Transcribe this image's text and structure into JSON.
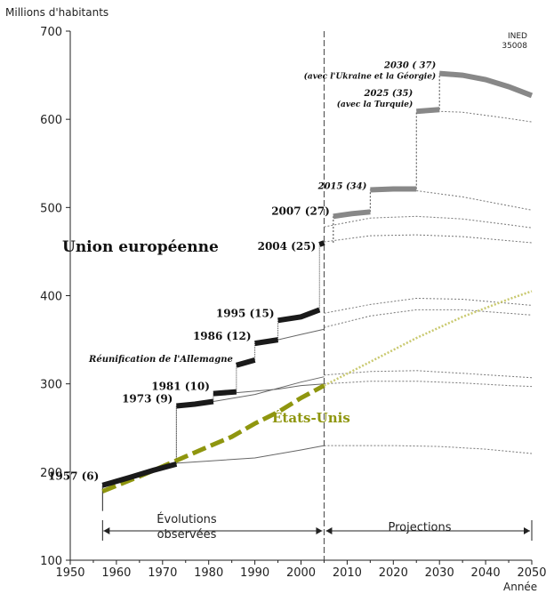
{
  "chart_data": {
    "type": "line",
    "ylabel": "Millions d'habitants",
    "xlabel": "Année",
    "xlim": [
      1950,
      2050
    ],
    "ylim": [
      100,
      700
    ],
    "x_ticks": [
      "1950",
      "1960",
      "1970",
      "1980",
      "1990",
      "2000",
      "2010",
      "2020",
      "2030",
      "2040",
      "2050"
    ],
    "y_ticks": [
      "100",
      "200",
      "300",
      "400",
      "500",
      "600",
      "700"
    ],
    "source_tag": [
      "INED",
      "35008"
    ],
    "region_labels": {
      "observed": [
        "Évolutions",
        "observées"
      ],
      "projected": "Projections"
    },
    "split_year": 2005,
    "eu_label": "Union européenne",
    "us_label": "États-Unis",
    "colors": {
      "eu_observed": "#1a1a1a",
      "eu_projected": "#888888",
      "us": "#8f960f",
      "thin": "#555555"
    },
    "eu_steps": [
      {
        "label": "1957 (6)",
        "start": 1957,
        "end": 1973,
        "values": [
          [
            1957,
            185
          ],
          [
            1963,
            194
          ],
          [
            1968,
            202
          ],
          [
            1973,
            209
          ]
        ]
      },
      {
        "label": "1973 (9)",
        "start": 1973,
        "end": 1981,
        "values": [
          [
            1973,
            275
          ],
          [
            1977,
            277
          ],
          [
            1981,
            280
          ]
        ]
      },
      {
        "label": "1981 (10)",
        "start": 1981,
        "end": 1986,
        "values": [
          [
            1981,
            289
          ],
          [
            1986,
            291
          ]
        ]
      },
      {
        "label": "Réunification de l'Allemagne",
        "start": 1986,
        "end": 1990,
        "values": [
          [
            1986,
            321
          ],
          [
            1990,
            327
          ]
        ]
      },
      {
        "label": "1986 (12)",
        "start": 1990,
        "end": 1995,
        "values": [
          [
            1990,
            346
          ],
          [
            1995,
            350
          ]
        ]
      },
      {
        "label": "1995 (15)",
        "start": 1995,
        "end": 2004,
        "values": [
          [
            1995,
            372
          ],
          [
            2000,
            376
          ],
          [
            2004,
            384
          ]
        ]
      },
      {
        "label": "2004 (25)",
        "start": 2004,
        "end": 2005,
        "values": [
          [
            2004,
            458
          ],
          [
            2005,
            460
          ]
        ]
      }
    ],
    "eu_projected_steps": [
      {
        "label": "2007 (27)",
        "start": 2007,
        "end": 2015,
        "values": [
          [
            2007,
            490
          ],
          [
            2011,
            493
          ],
          [
            2015,
            495
          ]
        ]
      },
      {
        "label": "2015 (34)",
        "start": 2015,
        "end": 2025,
        "values": [
          [
            2015,
            520
          ],
          [
            2020,
            521
          ],
          [
            2025,
            521
          ]
        ]
      },
      {
        "label": "2025 (35)",
        "annotation": "(avec la Turquie)",
        "start": 2025,
        "end": 2030,
        "values": [
          [
            2025,
            609
          ],
          [
            2030,
            611
          ]
        ]
      },
      {
        "label": "2030 ( 37)",
        "annotation": "(avec l'Ukraine et la Géorgie)",
        "start": 2030,
        "end": 2050,
        "values": [
          [
            2030,
            652
          ],
          [
            2035,
            650
          ],
          [
            2040,
            645
          ],
          [
            2045,
            637
          ],
          [
            2050,
            627
          ]
        ]
      }
    ],
    "us_series": {
      "name": "États-Unis",
      "observed": [
        [
          1957,
          178
        ],
        [
          1965,
          195
        ],
        [
          1973,
          213
        ],
        [
          1980,
          229
        ],
        [
          1985,
          240
        ],
        [
          1990,
          255
        ],
        [
          1995,
          268
        ],
        [
          2000,
          284
        ],
        [
          2005,
          298
        ]
      ],
      "projected": [
        [
          2005,
          298
        ],
        [
          2015,
          325
        ],
        [
          2025,
          352
        ],
        [
          2035,
          376
        ],
        [
          2045,
          396
        ],
        [
          2050,
          405
        ]
      ]
    },
    "thin_observed": [
      [
        [
          1973,
          210
        ],
        [
          1990,
          216
        ],
        [
          2000,
          225
        ],
        [
          2005,
          230
        ]
      ],
      [
        [
          1981,
          280
        ],
        [
          1990,
          288
        ],
        [
          2000,
          302
        ],
        [
          2005,
          308
        ]
      ],
      [
        [
          1986,
          290
        ],
        [
          1995,
          294
        ],
        [
          2000,
          298
        ],
        [
          2005,
          300
        ]
      ],
      [
        [
          1995,
          350
        ],
        [
          2000,
          356
        ],
        [
          2005,
          362
        ]
      ],
      [
        [
          2004,
          460
        ],
        [
          2005,
          461
        ]
      ]
    ],
    "thin_projected": [
      [
        [
          2005,
          230
        ],
        [
          2020,
          230
        ],
        [
          2030,
          229
        ],
        [
          2040,
          226
        ],
        [
          2050,
          221
        ]
      ],
      [
        [
          2005,
          300
        ],
        [
          2015,
          303
        ],
        [
          2025,
          303
        ],
        [
          2035,
          301
        ],
        [
          2045,
          298
        ],
        [
          2050,
          297
        ]
      ],
      [
        [
          2005,
          310
        ],
        [
          2015,
          314
        ],
        [
          2025,
          315
        ],
        [
          2035,
          312
        ],
        [
          2050,
          307
        ]
      ],
      [
        [
          2005,
          364
        ],
        [
          2015,
          377
        ],
        [
          2025,
          384
        ],
        [
          2035,
          384
        ],
        [
          2050,
          378
        ]
      ],
      [
        [
          2005,
          380
        ],
        [
          2015,
          390
        ],
        [
          2025,
          397
        ],
        [
          2035,
          396
        ],
        [
          2050,
          389
        ]
      ],
      [
        [
          2005,
          461
        ],
        [
          2015,
          468
        ],
        [
          2025,
          469
        ],
        [
          2035,
          467
        ],
        [
          2050,
          460
        ]
      ],
      [
        [
          2005,
          478
        ],
        [
          2015,
          488
        ],
        [
          2025,
          490
        ],
        [
          2035,
          487
        ],
        [
          2050,
          477
        ]
      ],
      [
        [
          2015,
          521
        ],
        [
          2025,
          519
        ],
        [
          2035,
          512
        ],
        [
          2050,
          497
        ]
      ],
      [
        [
          2025,
          610
        ],
        [
          2035,
          608
        ],
        [
          2045,
          601
        ],
        [
          2050,
          597
        ]
      ]
    ]
  }
}
